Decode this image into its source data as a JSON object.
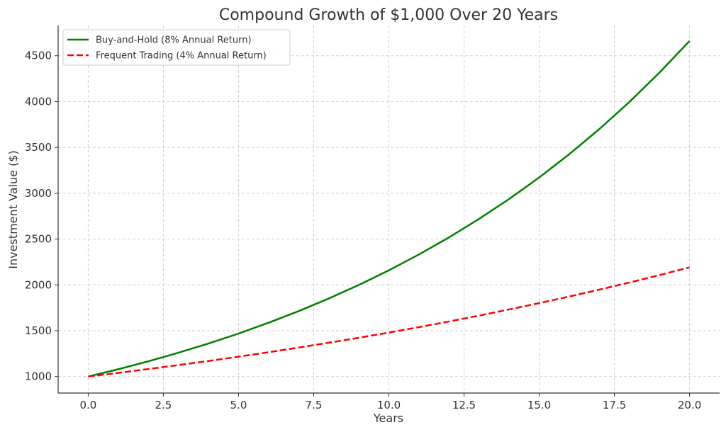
{
  "chart_data": {
    "type": "line",
    "title": "Compound Growth of $1,000 Over 20 Years",
    "xlabel": "Years",
    "ylabel": "Investment Value ($)",
    "xlim": [
      -1.0,
      21.0
    ],
    "ylim": [
      820,
      4830
    ],
    "x_ticks": [
      0.0,
      2.5,
      5.0,
      7.5,
      10.0,
      12.5,
      15.0,
      17.5,
      20.0
    ],
    "x_tick_labels": [
      "0.0",
      "2.5",
      "5.0",
      "7.5",
      "10.0",
      "12.5",
      "15.0",
      "17.5",
      "20.0"
    ],
    "y_ticks": [
      1000,
      1500,
      2000,
      2500,
      3000,
      3500,
      4000,
      4500
    ],
    "y_tick_labels": [
      "1000",
      "1500",
      "2000",
      "2500",
      "3000",
      "3500",
      "4000",
      "4500"
    ],
    "grid": true,
    "legend_position": "top-left",
    "x": [
      0,
      1,
      2,
      3,
      4,
      5,
      6,
      7,
      8,
      9,
      10,
      11,
      12,
      13,
      14,
      15,
      16,
      17,
      18,
      19,
      20
    ],
    "series": [
      {
        "name": "Buy-and-Hold (8% Annual Return)",
        "color": "#008000",
        "style": "solid",
        "values": [
          1000,
          1080,
          1166,
          1260,
          1360,
          1469,
          1587,
          1714,
          1851,
          1999,
          2159,
          2332,
          2518,
          2720,
          2937,
          3172,
          3426,
          3700,
          3996,
          4316,
          4661
        ]
      },
      {
        "name": "Frequent Trading (4% Annual Return)",
        "color": "#ff0000",
        "style": "dashed",
        "values": [
          1000,
          1040,
          1082,
          1125,
          1170,
          1217,
          1265,
          1316,
          1369,
          1423,
          1480,
          1539,
          1601,
          1665,
          1732,
          1801,
          1873,
          1948,
          2026,
          2107,
          2191
        ]
      }
    ]
  }
}
